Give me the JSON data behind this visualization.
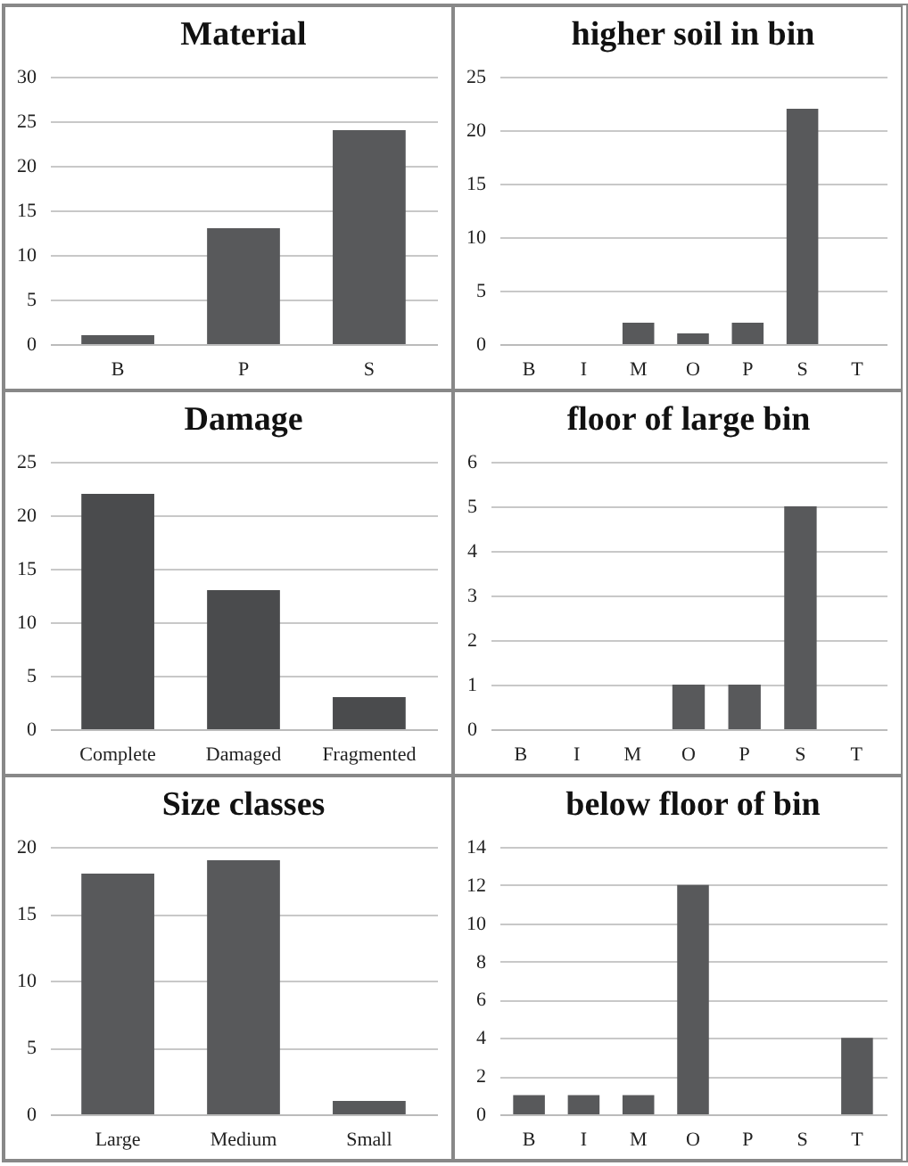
{
  "chart_data": [
    {
      "type": "bar",
      "title": "Material",
      "categories": [
        "B",
        "P",
        "S"
      ],
      "values": [
        1,
        13,
        24
      ],
      "color": "#58595b",
      "ylim": [
        0,
        30
      ],
      "yticks": [
        0,
        5,
        10,
        15,
        20,
        25,
        30
      ],
      "grid": "y"
    },
    {
      "type": "bar",
      "title": "higher soil in bin",
      "categories": [
        "B",
        "I",
        "M",
        "O",
        "P",
        "S",
        "T"
      ],
      "values": [
        0,
        0,
        2,
        1,
        2,
        22,
        0
      ],
      "color": "#58595b",
      "ylim": [
        0,
        25
      ],
      "yticks": [
        0,
        5,
        10,
        15,
        20,
        25
      ],
      "grid": "y"
    },
    {
      "type": "bar",
      "title": "Damage",
      "categories": [
        "Complete",
        "Damaged",
        "Fragmented"
      ],
      "values": [
        22,
        13,
        3
      ],
      "color": "#4a4b4d",
      "ylim": [
        0,
        25
      ],
      "yticks": [
        0,
        5,
        10,
        15,
        20,
        25
      ],
      "grid": "y"
    },
    {
      "type": "bar",
      "title": "floor of large bin",
      "categories": [
        "B",
        "I",
        "M",
        "O",
        "P",
        "S",
        "T"
      ],
      "values": [
        0,
        0,
        0,
        1,
        1,
        5,
        0
      ],
      "color": "#58595b",
      "ylim": [
        0,
        6
      ],
      "yticks": [
        0,
        1,
        2,
        3,
        4,
        5,
        6
      ],
      "grid": "y"
    },
    {
      "type": "bar",
      "title": "Size classes",
      "categories": [
        "Large",
        "Medium",
        "Small"
      ],
      "values": [
        18,
        19,
        1
      ],
      "color": "#58595b",
      "ylim": [
        0,
        20
      ],
      "yticks": [
        0,
        5,
        10,
        15,
        20
      ],
      "grid": "y"
    },
    {
      "type": "bar",
      "title": "below floor of bin",
      "categories": [
        "B",
        "I",
        "M",
        "O",
        "P",
        "S",
        "T"
      ],
      "values": [
        1,
        1,
        1,
        12,
        0,
        0,
        4
      ],
      "color": "#58595b",
      "ylim": [
        0,
        14
      ],
      "yticks": [
        0,
        2,
        4,
        6,
        8,
        10,
        12,
        14
      ],
      "grid": "y"
    }
  ]
}
